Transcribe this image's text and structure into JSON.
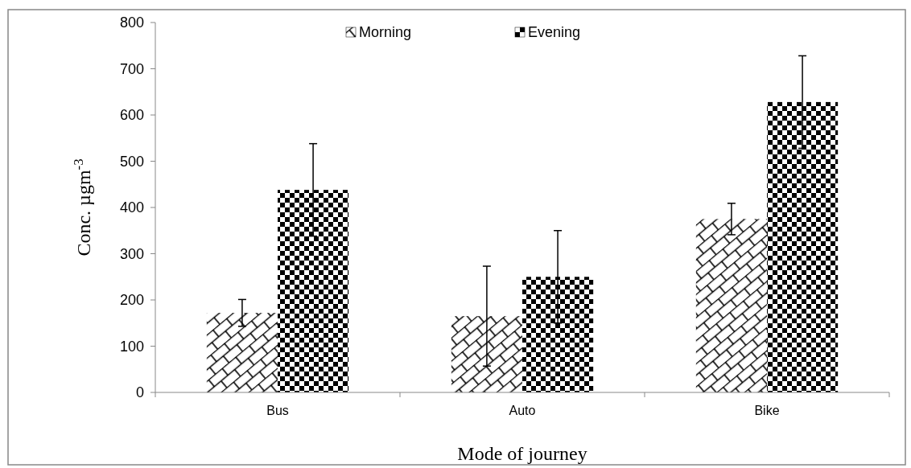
{
  "chart_data": {
    "type": "bar",
    "xlabel": "Mode of journey",
    "ylabel": "Conc. µgm$^{-3}$",
    "categories": [
      "Bus",
      "Auto",
      "Bike"
    ],
    "series": [
      {
        "name": "Morning",
        "color": "#000000",
        "values": [
          172,
          165,
          375
        ],
        "errors": [
          29,
          108,
          34
        ]
      },
      {
        "name": "Evening",
        "color": "#000000",
        "values": [
          438,
          250,
          628
        ],
        "errors": [
          100,
          100,
          100
        ]
      }
    ],
    "ylim": [
      0,
      800
    ],
    "yticks": [
      0,
      100,
      200,
      300,
      400,
      500,
      600,
      700,
      800
    ],
    "legend": "top"
  }
}
